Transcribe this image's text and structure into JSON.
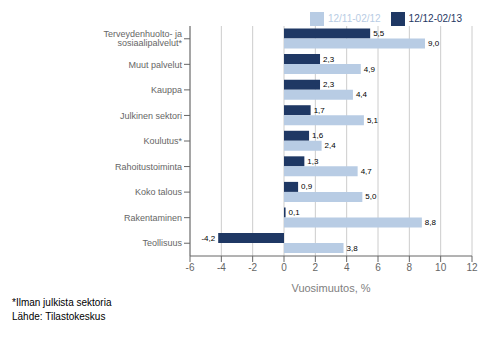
{
  "chart_data": {
    "type": "bar",
    "orientation": "horizontal",
    "categories": [
      "Teollisuus",
      "Rakentaminen",
      "Koko talous",
      "Rahoitustoiminta",
      "Koulutus*",
      "Julkinen sektori",
      "Kauppa",
      "Muut palvelut",
      "Terveydenhuolto- ja sosiaalipalvelut*"
    ],
    "series": [
      {
        "name": "12/12-02/13",
        "color": "#1F3864",
        "values": [
          -4.2,
          0.1,
          0.9,
          1.3,
          1.6,
          1.7,
          2.3,
          2.3,
          5.5
        ],
        "value_labels": [
          "-4,2",
          "0,1",
          "0,9",
          "1,3",
          "1,6",
          "1,7",
          "2,3",
          "2,3",
          "5,5"
        ]
      },
      {
        "name": "12/11-02/12",
        "color": "#B8CCE4",
        "values": [
          3.8,
          8.8,
          5.0,
          4.7,
          2.4,
          5.1,
          4.4,
          4.9,
          9.0
        ],
        "value_labels": [
          "3,8",
          "8,8",
          "5,0",
          "4,7",
          "2,4",
          "5,1",
          "4,4",
          "4,9",
          "9,0"
        ]
      }
    ],
    "xlabel": "Vuosimuutos, %",
    "xlim": [
      -6,
      12
    ],
    "xticks": [
      -6,
      -4,
      -2,
      0,
      2,
      4,
      6,
      8,
      10,
      12
    ],
    "grid": true,
    "legend": "upper right",
    "data_labels": true,
    "annotations": [
      "*Ilman julkista sektoria",
      "Lähde: Tilastokeskus"
    ]
  }
}
